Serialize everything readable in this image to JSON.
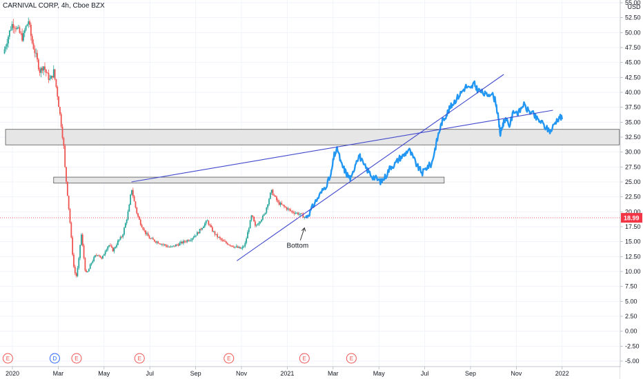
{
  "header": {
    "symbol_title": "CARNIVAL CORP, 4h, Cboe BZX",
    "currency": "USD"
  },
  "colors": {
    "up": "#26a69a",
    "down": "#ef5350",
    "projection": "#2196f3",
    "trendline": "#3f48cc",
    "zone_fill": "#e6e6e6",
    "zone_stroke": "#555555",
    "last_price": "#f23645"
  },
  "chart_data": {
    "type": "candlestick",
    "title": "CARNIVAL CORP, 4h, Cboe BZX",
    "y_unit": "USD",
    "ylim": [
      -5.5,
      55.2
    ],
    "y_ticks": [
      "-5.00",
      "-2.50",
      "0.00",
      "2.50",
      "5.00",
      "7.50",
      "10.00",
      "12.50",
      "15.00",
      "17.50",
      "20.00",
      "22.50",
      "25.00",
      "27.50",
      "30.00",
      "32.50",
      "35.00",
      "37.50",
      "40.00",
      "42.50",
      "45.00",
      "47.50",
      "50.00",
      "52.50",
      "55.00"
    ],
    "x_ticks": [
      {
        "label": "2020",
        "x": 0.0
      },
      {
        "label": "Mar",
        "x": 2.0
      },
      {
        "label": "May",
        "x": 4.0
      },
      {
        "label": "Jul",
        "x": 6.0
      },
      {
        "label": "Sep",
        "x": 8.0
      },
      {
        "label": "Nov",
        "x": 10.0
      },
      {
        "label": "2021",
        "x": 12.0
      },
      {
        "label": "Mar",
        "x": 14.0
      },
      {
        "label": "May",
        "x": 16.0
      },
      {
        "label": "Jul",
        "x": 18.0
      },
      {
        "label": "Sep",
        "x": 20.0
      },
      {
        "label": "Nov",
        "x": 22.0
      },
      {
        "label": "2022",
        "x": 24.0
      }
    ],
    "x_unit": "months since Jan 2020",
    "last_price": {
      "value": 18.99,
      "label": "18.99"
    },
    "price_path": [
      [
        -0.4,
        46.5
      ],
      [
        -0.25,
        48.5
      ],
      [
        -0.1,
        50.5
      ],
      [
        0.0,
        51.5
      ],
      [
        0.15,
        51.0
      ],
      [
        0.3,
        50.0
      ],
      [
        0.45,
        49.0
      ],
      [
        0.55,
        50.5
      ],
      [
        0.7,
        52.0
      ],
      [
        0.85,
        48.5
      ],
      [
        1.0,
        46.5
      ],
      [
        1.2,
        43.5
      ],
      [
        1.35,
        44.5
      ],
      [
        1.5,
        43.0
      ],
      [
        1.65,
        42.0
      ],
      [
        1.8,
        43.5
      ],
      [
        1.95,
        40.0
      ],
      [
        2.05,
        37.0
      ],
      [
        2.15,
        34.0
      ],
      [
        2.25,
        30.5
      ],
      [
        2.3,
        27.0
      ],
      [
        2.38,
        24.0
      ],
      [
        2.45,
        21.0
      ],
      [
        2.52,
        18.0
      ],
      [
        2.6,
        14.0
      ],
      [
        2.7,
        10.0
      ],
      [
        2.8,
        9.2
      ],
      [
        2.9,
        12.0
      ],
      [
        3.0,
        16.5
      ],
      [
        3.1,
        13.0
      ],
      [
        3.2,
        9.5
      ],
      [
        3.3,
        10.0
      ],
      [
        3.45,
        11.5
      ],
      [
        3.6,
        12.5
      ],
      [
        3.75,
        13.0
      ],
      [
        3.9,
        12.0
      ],
      [
        4.05,
        13.5
      ],
      [
        4.2,
        14.5
      ],
      [
        4.4,
        13.5
      ],
      [
        4.6,
        15.0
      ],
      [
        4.8,
        16.0
      ],
      [
        5.0,
        19.0
      ],
      [
        5.1,
        21.0
      ],
      [
        5.2,
        24.0
      ],
      [
        5.3,
        22.0
      ],
      [
        5.45,
        19.5
      ],
      [
        5.6,
        18.0
      ],
      [
        5.8,
        16.5
      ],
      [
        6.0,
        15.5
      ],
      [
        6.3,
        15.0
      ],
      [
        6.6,
        14.5
      ],
      [
        6.9,
        14.0
      ],
      [
        7.2,
        14.5
      ],
      [
        7.5,
        15.0
      ],
      [
        7.8,
        15.5
      ],
      [
        8.1,
        16.5
      ],
      [
        8.3,
        17.5
      ],
      [
        8.5,
        18.5
      ],
      [
        8.7,
        17.0
      ],
      [
        8.9,
        16.0
      ],
      [
        9.2,
        15.0
      ],
      [
        9.5,
        14.5
      ],
      [
        9.8,
        14.0
      ],
      [
        10.0,
        13.8
      ],
      [
        10.15,
        14.5
      ],
      [
        10.3,
        17.0
      ],
      [
        10.45,
        19.5
      ],
      [
        10.6,
        17.5
      ],
      [
        10.8,
        18.5
      ],
      [
        11.0,
        19.5
      ],
      [
        11.15,
        21.5
      ],
      [
        11.3,
        23.5
      ],
      [
        11.45,
        22.5
      ],
      [
        11.6,
        21.5
      ],
      [
        11.8,
        21.0
      ],
      [
        12.0,
        20.5
      ],
      [
        12.2,
        20.0
      ],
      [
        12.4,
        19.8
      ],
      [
        12.6,
        19.5
      ],
      [
        12.8,
        19.0
      ]
    ],
    "projection_path": [
      [
        12.8,
        19.0
      ],
      [
        13.0,
        20.0
      ],
      [
        13.2,
        21.5
      ],
      [
        13.45,
        23.0
      ],
      [
        13.7,
        24.5
      ],
      [
        13.9,
        26.0
      ],
      [
        14.05,
        29.5
      ],
      [
        14.2,
        30.5
      ],
      [
        14.35,
        28.0
      ],
      [
        14.5,
        27.0
      ],
      [
        14.65,
        26.0
      ],
      [
        14.8,
        25.5
      ],
      [
        15.0,
        28.5
      ],
      [
        15.15,
        29.5
      ],
      [
        15.3,
        28.0
      ],
      [
        15.5,
        27.0
      ],
      [
        15.7,
        26.0
      ],
      [
        15.9,
        25.5
      ],
      [
        16.1,
        25.0
      ],
      [
        16.3,
        26.0
      ],
      [
        16.5,
        27.5
      ],
      [
        16.7,
        28.0
      ],
      [
        16.9,
        29.0
      ],
      [
        17.1,
        29.5
      ],
      [
        17.3,
        30.5
      ],
      [
        17.5,
        29.0
      ],
      [
        17.7,
        27.5
      ],
      [
        17.9,
        26.5
      ],
      [
        18.1,
        27.5
      ],
      [
        18.3,
        28.0
      ],
      [
        18.45,
        30.5
      ],
      [
        18.6,
        33.0
      ],
      [
        18.75,
        35.0
      ],
      [
        18.9,
        36.0
      ],
      [
        19.05,
        37.0
      ],
      [
        19.2,
        38.0
      ],
      [
        19.4,
        39.0
      ],
      [
        19.6,
        40.0
      ],
      [
        19.8,
        41.0
      ],
      [
        20.0,
        40.5
      ],
      [
        20.15,
        41.5
      ],
      [
        20.3,
        40.5
      ],
      [
        20.5,
        40.0
      ],
      [
        20.7,
        39.5
      ],
      [
        20.9,
        40.0
      ],
      [
        21.1,
        38.5
      ],
      [
        21.2,
        36.0
      ],
      [
        21.3,
        33.0
      ],
      [
        21.4,
        34.5
      ],
      [
        21.5,
        35.5
      ],
      [
        21.7,
        34.5
      ],
      [
        21.9,
        37.0
      ],
      [
        22.1,
        36.5
      ],
      [
        22.3,
        38.0
      ],
      [
        22.5,
        37.0
      ],
      [
        22.7,
        36.5
      ],
      [
        22.9,
        35.5
      ],
      [
        23.1,
        35.0
      ],
      [
        23.3,
        34.0
      ],
      [
        23.5,
        33.5
      ],
      [
        23.7,
        35.0
      ],
      [
        23.9,
        36.0
      ],
      [
        24.0,
        35.5
      ]
    ],
    "zones": [
      {
        "x0": -0.3,
        "x1": 26.5,
        "y0": 31.2,
        "y1": 33.8
      },
      {
        "x0": 1.8,
        "x1": 18.85,
        "y0": 24.8,
        "y1": 25.8
      }
    ],
    "trendlines": [
      {
        "x0": 5.2,
        "y0": 25.0,
        "x1": 23.6,
        "y1": 37.0
      },
      {
        "x0": 9.8,
        "y0": 11.8,
        "x1": 21.45,
        "y1": 43.0
      }
    ],
    "annotation": {
      "text": "Bottom",
      "arrow_tip_x": 12.75,
      "arrow_tip_y": 17.3,
      "text_x": 12.45,
      "text_y": 14.0
    },
    "event_markers": [
      {
        "x": -0.2,
        "label": "E",
        "kind": "earnings"
      },
      {
        "x": 1.85,
        "label": "D",
        "kind": "dividend"
      },
      {
        "x": 2.8,
        "label": "E",
        "kind": "earnings"
      },
      {
        "x": 5.55,
        "label": "E",
        "kind": "earnings"
      },
      {
        "x": 9.45,
        "label": "E",
        "kind": "earnings"
      },
      {
        "x": 12.75,
        "label": "E",
        "kind": "earnings"
      },
      {
        "x": 14.8,
        "label": "E",
        "kind": "earnings"
      }
    ]
  }
}
